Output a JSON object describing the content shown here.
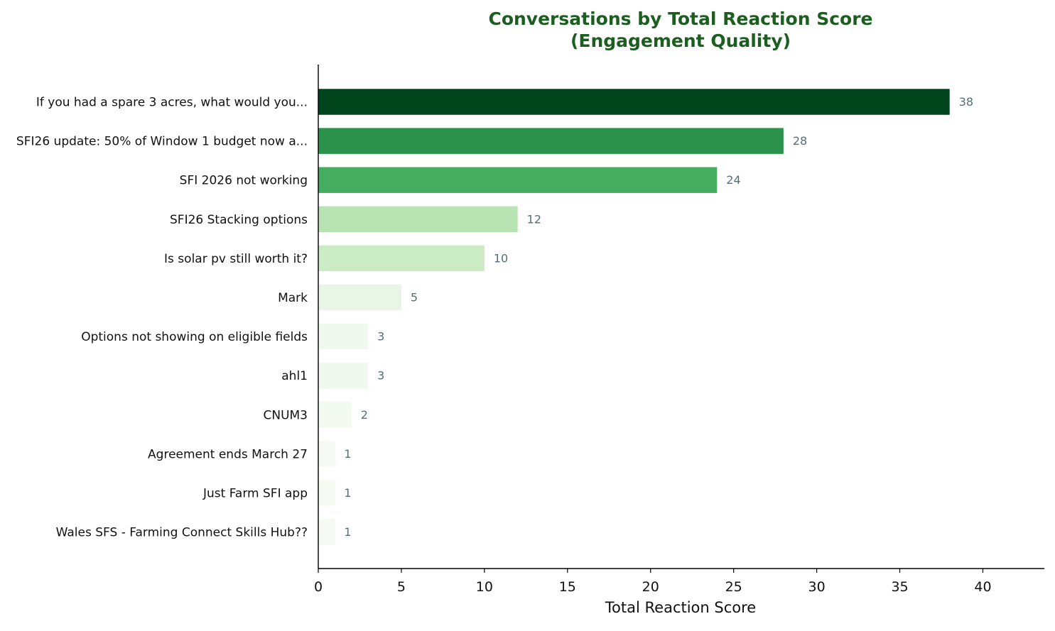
{
  "chart_data": {
    "type": "bar",
    "orientation": "horizontal",
    "title": "Conversations by Total Reaction Score\n(Engagement Quality)",
    "title_lines": [
      "Conversations by Total Reaction Score",
      "(Engagement Quality)"
    ],
    "xlabel": "Total Reaction Score",
    "ylabel": "",
    "xlim": [
      0,
      43.7
    ],
    "xticks": [
      0,
      5,
      10,
      15,
      20,
      25,
      30,
      35,
      40
    ],
    "grid": false,
    "categories": [
      "If you had a spare 3 acres, what would you...",
      "SFI26 update: 50% of Window 1 budget now a...",
      "SFI 2026 not working",
      "SFI26 Stacking options",
      "Is solar pv still worth it?",
      "Mark",
      "Options not showing on eligible fields",
      "ahl1",
      "CNUM3",
      "Agreement ends March 27",
      "Just Farm SFI app",
      "Wales SFS - Farming Connect Skills Hub??"
    ],
    "values": [
      38,
      28,
      24,
      12,
      10,
      5,
      3,
      3,
      2,
      1,
      1,
      1
    ],
    "bar_colors": [
      "#00441b",
      "#2a924a",
      "#44ad5f",
      "#b8e3b2",
      "#cbebc5",
      "#e9f6e5",
      "#f0f9ed",
      "#f0f9ed",
      "#f3faf0",
      "#f5fbf2",
      "#f5fbf2",
      "#f5fbf2"
    ]
  },
  "colors": {
    "title": "#1b5e20",
    "value_label": "#546e7a",
    "axis": "#000000",
    "text": "#111111"
  }
}
